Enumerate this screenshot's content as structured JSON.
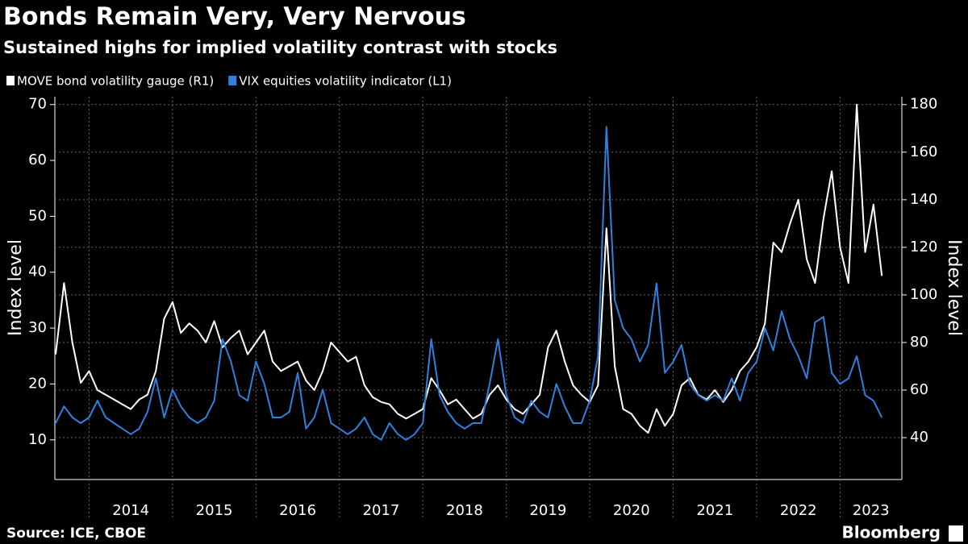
{
  "chart_data": {
    "type": "line",
    "title": "Bonds Remain Very, Very Nervous",
    "subtitle": "Sustained highs for implied volatility contrast with stocks",
    "source": "Source: ICE, CBOE",
    "logo": "Bloomberg",
    "ylabel": "Index level",
    "y2label": "Index level",
    "x": [
      2013.6,
      2013.7,
      2013.8,
      2013.9,
      2014.0,
      2014.1,
      2014.2,
      2014.3,
      2014.4,
      2014.5,
      2014.6,
      2014.7,
      2014.8,
      2014.9,
      2015.0,
      2015.1,
      2015.2,
      2015.3,
      2015.4,
      2015.5,
      2015.6,
      2015.7,
      2015.8,
      2015.9,
      2016.0,
      2016.1,
      2016.2,
      2016.3,
      2016.4,
      2016.5,
      2016.6,
      2016.7,
      2016.8,
      2016.9,
      2017.0,
      2017.1,
      2017.2,
      2017.3,
      2017.4,
      2017.5,
      2017.6,
      2017.7,
      2017.8,
      2017.9,
      2018.0,
      2018.1,
      2018.2,
      2018.3,
      2018.4,
      2018.5,
      2018.6,
      2018.7,
      2018.8,
      2018.9,
      2019.0,
      2019.1,
      2019.2,
      2019.3,
      2019.4,
      2019.5,
      2019.6,
      2019.7,
      2019.8,
      2019.9,
      2020.0,
      2020.1,
      2020.2,
      2020.3,
      2020.4,
      2020.5,
      2020.6,
      2020.7,
      2020.8,
      2020.9,
      2021.0,
      2021.1,
      2021.2,
      2021.3,
      2021.4,
      2021.5,
      2021.6,
      2021.7,
      2021.8,
      2021.9,
      2022.0,
      2022.1,
      2022.2,
      2022.3,
      2022.4,
      2022.5,
      2022.6,
      2022.7,
      2022.8,
      2022.9,
      2023.0,
      2023.1,
      2023.2,
      2023.3,
      2023.4,
      2023.5
    ],
    "xlim": [
      2013.59,
      2023.74
    ],
    "xticks": [
      2014,
      2015,
      2016,
      2017,
      2018,
      2019,
      2020,
      2021,
      2022,
      2023
    ],
    "ylim": [
      2.9,
      71.4
    ],
    "yticks": [
      10,
      20,
      30,
      40,
      50,
      60,
      70
    ],
    "y2lim": [
      22.4,
      183.3
    ],
    "y2ticks": [
      40,
      60,
      80,
      100,
      120,
      140,
      160,
      180
    ],
    "grid": "y2",
    "series": [
      {
        "name": "MOVE bond volatility gauge (R1)",
        "color": "#ffffff",
        "axis": "y2",
        "values": [
          75,
          105,
          80,
          63,
          68,
          60,
          58,
          56,
          54,
          52,
          56,
          58,
          68,
          90,
          97,
          84,
          88,
          85,
          80,
          89,
          78,
          82,
          85,
          75,
          80,
          85,
          72,
          68,
          70,
          72,
          64,
          60,
          68,
          80,
          76,
          72,
          74,
          62,
          57,
          55,
          54,
          50,
          48,
          50,
          52,
          65,
          60,
          54,
          56,
          52,
          48,
          50,
          58,
          62,
          56,
          52,
          50,
          54,
          58,
          78,
          85,
          72,
          62,
          58,
          55,
          62,
          128,
          70,
          52,
          50,
          45,
          42,
          52,
          45,
          50,
          62,
          65,
          58,
          56,
          60,
          55,
          60,
          68,
          72,
          78,
          88,
          122,
          118,
          130,
          140,
          115,
          105,
          132,
          152,
          120,
          105,
          180,
          118,
          138,
          108
        ]
      },
      {
        "name": "VIX equities volatility indicator (L1)",
        "color": "#2f80e0",
        "values": [
          13,
          16,
          14,
          13,
          14,
          17,
          14,
          13,
          12,
          11,
          12,
          15,
          21,
          14,
          19,
          16,
          14,
          13,
          14,
          17,
          28,
          24,
          18,
          17,
          24,
          20,
          14,
          14,
          15,
          22,
          12,
          14,
          19,
          13,
          12,
          11,
          12,
          14,
          11,
          10,
          13,
          11,
          10,
          11,
          13,
          28,
          18,
          15,
          13,
          12,
          13,
          13,
          20,
          28,
          18,
          14,
          13,
          17,
          15,
          14,
          20,
          16,
          13,
          13,
          17,
          25,
          66,
          35,
          30,
          28,
          24,
          27,
          38,
          22,
          24,
          27,
          20,
          18,
          17,
          18,
          17,
          21,
          17,
          22,
          24,
          30,
          26,
          33,
          28,
          25,
          21,
          31,
          32,
          22,
          20,
          21,
          25,
          18,
          17,
          14
        ]
      }
    ]
  }
}
